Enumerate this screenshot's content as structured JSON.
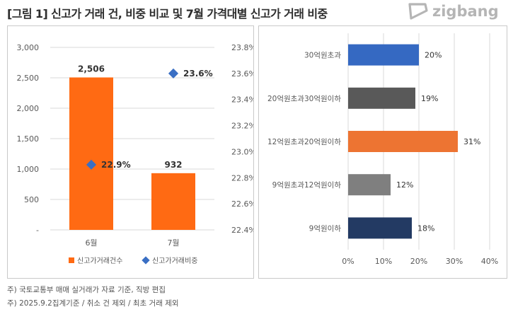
{
  "header": {
    "title": "[그림 1] 신고가 거래 건, 비중 비교 및 7월 가격대별 신고가 거래 비중",
    "brand": "zigbang"
  },
  "colors": {
    "orange": "#FF6A13",
    "diamond": "#3A6FC4",
    "bar_30up": "#3569C2",
    "bar_20to30": "#595959",
    "bar_12to20": "#ED7432",
    "bar_9to12": "#7F7F7F",
    "bar_under9": "#233A63",
    "logo": "#b5b5b5"
  },
  "chart_data": [
    {
      "type": "bar",
      "categories": [
        "6월",
        "7월"
      ],
      "series": [
        {
          "name": "신고가거래건수",
          "values": [
            2506,
            932
          ],
          "data_labels": [
            "2,506",
            "932"
          ]
        },
        {
          "name": "신고가거래비중",
          "values": [
            22.9,
            23.6
          ],
          "data_labels": [
            "22.9%",
            "23.6%"
          ],
          "axis": "secondary"
        }
      ],
      "ylim": [
        0,
        3000
      ],
      "y_ticks": [
        "-",
        "500",
        "1,000",
        "1,500",
        "2,000",
        "2,500",
        "3,000"
      ],
      "y2lim": [
        22.4,
        23.8
      ],
      "y2_ticks": [
        "22.4%",
        "22.6%",
        "22.8%",
        "23.0%",
        "23.2%",
        "23.4%",
        "23.6%",
        "23.8%"
      ],
      "grid": true,
      "legend": "bottom"
    },
    {
      "type": "bar",
      "orientation": "horizontal",
      "categories": [
        "30억원초과",
        "20억원초과30억원이하",
        "12억원초과20억원이하",
        "9억원초과12억원이하",
        "9억원이하"
      ],
      "values": [
        20,
        19,
        31,
        12,
        18
      ],
      "data_labels": [
        "20%",
        "19%",
        "31%",
        "12%",
        "18%"
      ],
      "xlim": [
        0,
        40
      ],
      "x_ticks": [
        "0%",
        "10%",
        "20%",
        "30%",
        "40%"
      ],
      "grid": true
    }
  ],
  "footnotes": [
    "주) 국토교통부 매매 실거래가 자료 기준, 직방 편집",
    "주) 2025.9.2집계기준 / 취소 건 제외  / 최초 거래 제외"
  ]
}
